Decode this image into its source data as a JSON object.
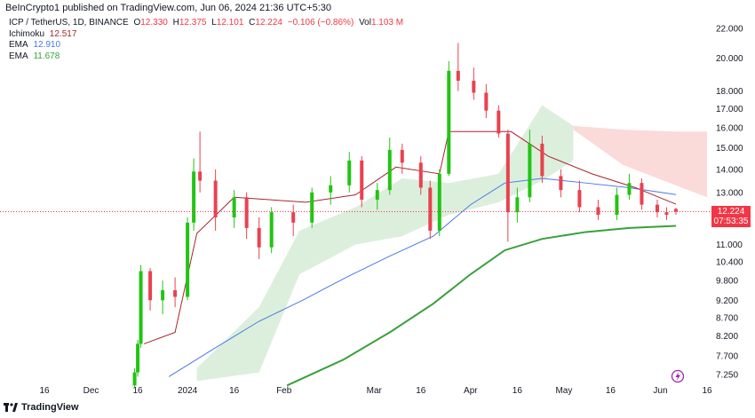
{
  "header": {
    "published": "BeInCrypto1 published on TradingView.com, Jun 06, 2024 21:36 UTC+5:30"
  },
  "legend": {
    "symbol": "ICP / TetherUS, 1D, BINANCE",
    "open_label": "O",
    "open": "12.330",
    "high_label": "H",
    "high": "12.375",
    "low_label": "L",
    "low": "12.101",
    "close_label": "C",
    "close": "12.224",
    "change": "−0.106 (−0.86%)",
    "vol_label": "Vol",
    "vol": "1.103 M",
    "ichimoku_label": "Ichimoku",
    "ichimoku_value": "12.517",
    "ema1_label": "EMA",
    "ema1_value": "12.910",
    "ema2_label": "EMA",
    "ema2_value": "11.678"
  },
  "price_badge": {
    "price": "12.224",
    "countdown": "07:53:35"
  },
  "footer": {
    "brand": "TradingView"
  },
  "colors": {
    "up": "#22c414",
    "down": "#e8424f",
    "ema_fast": "#4a78e8",
    "ema_slow": "#3aa03a",
    "kijun": "#a8242a",
    "cloud_bull": "#dcefdd",
    "cloud_bear": "#fbdada"
  },
  "chart_data": {
    "type": "candlestick",
    "scale": "log",
    "ylim": [
      7.0,
      22.5
    ],
    "y_ticks": [
      "22.000",
      "20.000",
      "18.000",
      "17.000",
      "16.000",
      "15.000",
      "14.000",
      "13.000",
      "11.000",
      "10.400",
      "9.800",
      "9.200",
      "8.700",
      "8.200",
      "7.700",
      "7.250"
    ],
    "x_ticks": [
      "16",
      "Dec",
      "16",
      "2024",
      "16",
      "Feb",
      "Mar",
      "16",
      "Apr",
      "16",
      "May",
      "16",
      "Jun",
      "16"
    ],
    "ohlc": [
      {
        "x": "2023-12-15",
        "o": 7.0,
        "h": 7.4,
        "l": 6.95,
        "c": 7.3
      },
      {
        "x": "2023-12-16",
        "o": 7.3,
        "h": 8.1,
        "l": 7.2,
        "c": 8.0
      },
      {
        "x": "2023-12-17",
        "o": 8.0,
        "h": 10.3,
        "l": 7.9,
        "c": 10.1
      },
      {
        "x": "2023-12-20",
        "o": 10.1,
        "h": 10.2,
        "l": 8.9,
        "c": 9.2
      },
      {
        "x": "2023-12-24",
        "o": 9.2,
        "h": 9.8,
        "l": 8.8,
        "c": 9.5
      },
      {
        "x": "2023-12-28",
        "o": 9.5,
        "h": 9.9,
        "l": 9.0,
        "c": 9.3
      },
      {
        "x": "2024-01-01",
        "o": 9.3,
        "h": 12.0,
        "l": 9.2,
        "c": 11.8
      },
      {
        "x": "2024-01-03",
        "o": 11.8,
        "h": 14.5,
        "l": 11.5,
        "c": 13.9
      },
      {
        "x": "2024-01-05",
        "o": 13.9,
        "h": 15.8,
        "l": 13.0,
        "c": 13.5
      },
      {
        "x": "2024-01-10",
        "o": 13.5,
        "h": 14.0,
        "l": 11.5,
        "c": 12.0
      },
      {
        "x": "2024-01-16",
        "o": 12.0,
        "h": 13.1,
        "l": 11.6,
        "c": 12.8
      },
      {
        "x": "2024-01-20",
        "o": 12.8,
        "h": 13.0,
        "l": 11.2,
        "c": 11.6
      },
      {
        "x": "2024-01-24",
        "o": 11.6,
        "h": 12.0,
        "l": 10.5,
        "c": 10.9
      },
      {
        "x": "2024-01-28",
        "o": 10.9,
        "h": 12.4,
        "l": 10.7,
        "c": 12.2
      },
      {
        "x": "2024-02-04",
        "o": 12.2,
        "h": 12.5,
        "l": 11.3,
        "c": 11.8
      },
      {
        "x": "2024-02-10",
        "o": 11.8,
        "h": 13.2,
        "l": 11.6,
        "c": 13.0
      },
      {
        "x": "2024-02-16",
        "o": 13.0,
        "h": 13.7,
        "l": 12.5,
        "c": 13.3
      },
      {
        "x": "2024-02-22",
        "o": 13.3,
        "h": 14.8,
        "l": 13.0,
        "c": 14.4
      },
      {
        "x": "2024-02-26",
        "o": 14.4,
        "h": 14.6,
        "l": 12.4,
        "c": 12.7
      },
      {
        "x": "2024-03-02",
        "o": 12.7,
        "h": 13.4,
        "l": 12.3,
        "c": 13.1
      },
      {
        "x": "2024-03-06",
        "o": 13.1,
        "h": 15.5,
        "l": 12.9,
        "c": 14.9
      },
      {
        "x": "2024-03-10",
        "o": 14.9,
        "h": 15.2,
        "l": 13.8,
        "c": 14.3
      },
      {
        "x": "2024-03-16",
        "o": 14.3,
        "h": 14.6,
        "l": 12.9,
        "c": 13.2
      },
      {
        "x": "2024-03-19",
        "o": 13.2,
        "h": 13.5,
        "l": 11.2,
        "c": 11.5
      },
      {
        "x": "2024-03-22",
        "o": 11.5,
        "h": 14.0,
        "l": 11.3,
        "c": 13.8
      },
      {
        "x": "2024-03-25",
        "o": 13.8,
        "h": 19.8,
        "l": 13.7,
        "c": 19.2
      },
      {
        "x": "2024-03-28",
        "o": 19.2,
        "h": 21.0,
        "l": 18.0,
        "c": 18.6
      },
      {
        "x": "2024-04-02",
        "o": 18.6,
        "h": 19.4,
        "l": 17.5,
        "c": 17.9
      },
      {
        "x": "2024-04-06",
        "o": 17.9,
        "h": 18.4,
        "l": 16.5,
        "c": 16.9
      },
      {
        "x": "2024-04-10",
        "o": 16.9,
        "h": 17.2,
        "l": 15.5,
        "c": 15.7
      },
      {
        "x": "2024-04-13",
        "o": 15.7,
        "h": 15.9,
        "l": 11.1,
        "c": 12.2
      },
      {
        "x": "2024-04-16",
        "o": 12.2,
        "h": 13.2,
        "l": 11.8,
        "c": 12.8
      },
      {
        "x": "2024-04-20",
        "o": 12.8,
        "h": 15.9,
        "l": 12.6,
        "c": 15.2
      },
      {
        "x": "2024-04-24",
        "o": 15.2,
        "h": 15.6,
        "l": 13.4,
        "c": 13.7
      },
      {
        "x": "2024-04-30",
        "o": 13.7,
        "h": 14.0,
        "l": 12.8,
        "c": 13.1
      },
      {
        "x": "2024-05-06",
        "o": 13.1,
        "h": 13.5,
        "l": 12.2,
        "c": 12.4
      },
      {
        "x": "2024-05-12",
        "o": 12.4,
        "h": 12.7,
        "l": 11.9,
        "c": 12.1
      },
      {
        "x": "2024-05-18",
        "o": 12.1,
        "h": 13.2,
        "l": 11.9,
        "c": 12.9
      },
      {
        "x": "2024-05-22",
        "o": 12.9,
        "h": 13.8,
        "l": 12.7,
        "c": 13.4
      },
      {
        "x": "2024-05-26",
        "o": 13.4,
        "h": 13.6,
        "l": 12.3,
        "c": 12.5
      },
      {
        "x": "2024-05-31",
        "o": 12.5,
        "h": 12.7,
        "l": 12.0,
        "c": 12.2
      },
      {
        "x": "2024-06-03",
        "o": 12.2,
        "h": 12.4,
        "l": 11.9,
        "c": 12.1
      },
      {
        "x": "2024-06-06",
        "o": 12.33,
        "h": 12.375,
        "l": 12.101,
        "c": 12.224
      }
    ],
    "ema_fast": [
      {
        "x": "2023-12-26",
        "y": 7.2
      },
      {
        "x": "2024-01-10",
        "y": 7.9
      },
      {
        "x": "2024-01-24",
        "y": 8.6
      },
      {
        "x": "2024-02-07",
        "y": 9.2
      },
      {
        "x": "2024-02-21",
        "y": 9.9
      },
      {
        "x": "2024-03-06",
        "y": 10.6
      },
      {
        "x": "2024-03-20",
        "y": 11.3
      },
      {
        "x": "2024-04-01",
        "y": 12.5
      },
      {
        "x": "2024-04-12",
        "y": 13.4
      },
      {
        "x": "2024-04-24",
        "y": 13.6
      },
      {
        "x": "2024-05-08",
        "y": 13.4
      },
      {
        "x": "2024-05-22",
        "y": 13.2
      },
      {
        "x": "2024-06-06",
        "y": 12.91
      }
    ],
    "ema_slow": [
      {
        "x": "2024-02-02",
        "y": 7.0
      },
      {
        "x": "2024-02-20",
        "y": 7.6
      },
      {
        "x": "2024-03-06",
        "y": 8.3
      },
      {
        "x": "2024-03-20",
        "y": 9.1
      },
      {
        "x": "2024-04-01",
        "y": 10.0
      },
      {
        "x": "2024-04-12",
        "y": 10.8
      },
      {
        "x": "2024-04-24",
        "y": 11.2
      },
      {
        "x": "2024-05-08",
        "y": 11.45
      },
      {
        "x": "2024-05-22",
        "y": 11.6
      },
      {
        "x": "2024-06-06",
        "y": 11.68
      }
    ],
    "kijun": [
      {
        "x": "2023-12-18",
        "y": 8.0
      },
      {
        "x": "2023-12-28",
        "y": 8.3
      },
      {
        "x": "2024-01-04",
        "y": 11.4
      },
      {
        "x": "2024-01-16",
        "y": 12.8
      },
      {
        "x": "2024-02-08",
        "y": 12.6
      },
      {
        "x": "2024-02-24",
        "y": 12.9
      },
      {
        "x": "2024-03-08",
        "y": 14.1
      },
      {
        "x": "2024-03-22",
        "y": 13.8
      },
      {
        "x": "2024-03-25",
        "y": 15.8
      },
      {
        "x": "2024-04-14",
        "y": 15.8
      },
      {
        "x": "2024-04-26",
        "y": 14.6
      },
      {
        "x": "2024-05-10",
        "y": 13.8
      },
      {
        "x": "2024-05-24",
        "y": 13.2
      },
      {
        "x": "2024-06-06",
        "y": 12.52
      }
    ],
    "cloud_bull": [
      {
        "x": "2024-01-04",
        "top": 7.4,
        "bot": 7.1
      },
      {
        "x": "2024-01-24",
        "top": 9.0,
        "bot": 7.3
      },
      {
        "x": "2024-02-06",
        "top": 11.5,
        "bot": 10.0
      },
      {
        "x": "2024-02-24",
        "top": 12.4,
        "bot": 11.0
      },
      {
        "x": "2024-03-10",
        "top": 13.6,
        "bot": 11.3
      },
      {
        "x": "2024-03-25",
        "top": 13.4,
        "bot": 12.1
      },
      {
        "x": "2024-04-10",
        "top": 13.8,
        "bot": 12.6
      },
      {
        "x": "2024-04-24",
        "top": 17.2,
        "bot": 13.5
      },
      {
        "x": "2024-05-04",
        "top": 16.1,
        "bot": 14.4
      }
    ],
    "cloud_bear": [
      {
        "x": "2024-05-04",
        "top": 16.1,
        "bot": 15.9
      },
      {
        "x": "2024-05-20",
        "top": 15.9,
        "bot": 14.2
      },
      {
        "x": "2024-06-06",
        "top": 15.8,
        "bot": 13.3
      },
      {
        "x": "2024-06-16",
        "top": 15.8,
        "bot": 12.8
      }
    ],
    "last_price": 12.224
  }
}
